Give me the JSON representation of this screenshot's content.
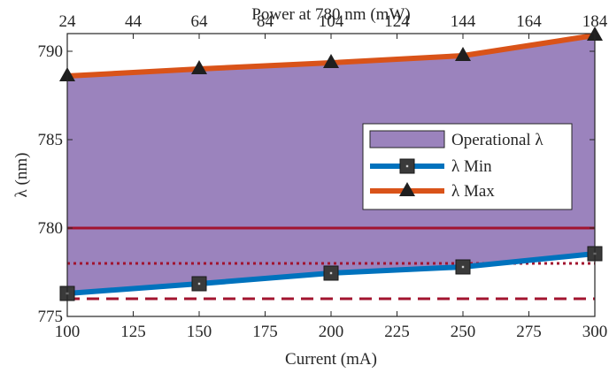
{
  "chart_data": {
    "type": "area",
    "title": "",
    "xlabel": "Current (mA)",
    "ylabel": "λ (nm)",
    "x2label": "Power at 780 nm (mW)",
    "xlim": [
      100,
      300
    ],
    "ylim": [
      775,
      791
    ],
    "x_ticks": [
      100,
      125,
      150,
      175,
      200,
      225,
      250,
      275,
      300
    ],
    "y_ticks": [
      775,
      780,
      785,
      790
    ],
    "x2_ticks": [
      24,
      44,
      64,
      84,
      104,
      124,
      144,
      164,
      184
    ],
    "x": [
      100,
      150,
      200,
      250,
      300
    ],
    "series": [
      {
        "name": "λ Min",
        "values": [
          776.3,
          776.85,
          777.45,
          777.8,
          778.55
        ],
        "color": "#0072BD",
        "marker": "square"
      },
      {
        "name": "λ Max",
        "values": [
          788.6,
          789.0,
          789.35,
          789.75,
          790.9
        ],
        "color": "#D95319",
        "marker": "triangle"
      }
    ],
    "fill": {
      "name": "Operational λ",
      "between": [
        "λ Min",
        "λ Max"
      ],
      "color": "#9B83BD"
    },
    "reference_lines": [
      {
        "y": 780,
        "style": "solid",
        "color": "#A2142F"
      },
      {
        "y": 778,
        "style": "dotted",
        "color": "#A2142F"
      },
      {
        "y": 776,
        "style": "dashed",
        "color": "#A2142F"
      }
    ],
    "legend_position": "right",
    "grid": false
  }
}
